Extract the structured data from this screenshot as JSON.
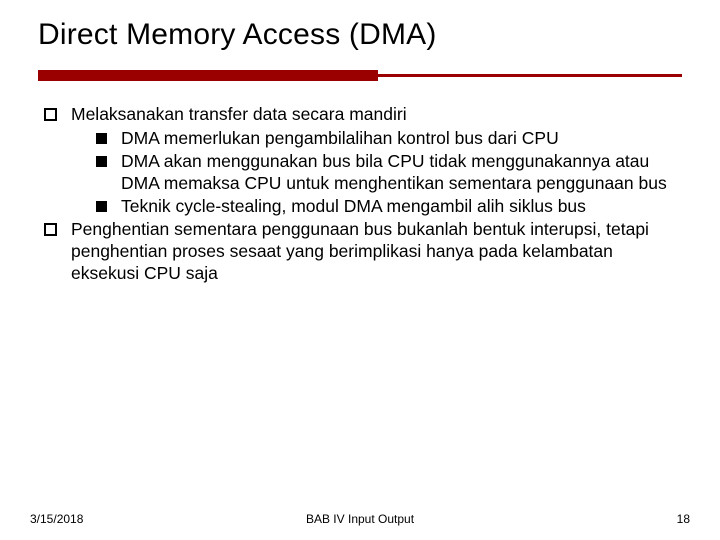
{
  "title": "Direct Memory Access (DMA)",
  "accent_color": "#9b0000",
  "bullets": {
    "item1": {
      "text": "Melaksanakan transfer data secara mandiri",
      "sub1": "DMA memerlukan pengambilalihan kontrol bus dari CPU",
      "sub2": "DMA akan menggunakan bus bila CPU tidak menggunakannya atau DMA memaksa CPU untuk menghentikan sementara penggunaan bus",
      "sub3": "Teknik cycle-stealing, modul DMA mengambil alih siklus bus"
    },
    "item2": {
      "text": " Penghentian sementara penggunaan bus bukanlah bentuk interupsi, tetapi penghentian proses sesaat yang berimplikasi hanya pada kelambatan eksekusi CPU saja"
    }
  },
  "footer": {
    "date": "3/15/2018",
    "center": "BAB IV   Input Output",
    "page": "18"
  }
}
